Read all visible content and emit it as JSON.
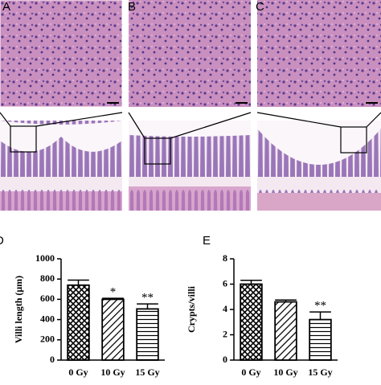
{
  "panel_labels": [
    "A",
    "B",
    "C"
  ],
  "chart_data": [
    {
      "type": "bar",
      "panel": "D",
      "y_label": "Villi length (μm)",
      "categories": [
        "0 Gy",
        "10 Gy",
        "15 Gy"
      ],
      "values": [
        740,
        600,
        505
      ],
      "errors": [
        50,
        10,
        50
      ],
      "significance": [
        null,
        "*",
        "**"
      ],
      "patterns": [
        "crosshatch",
        "diagonal",
        "horizontal"
      ],
      "color": "#000000",
      "ylim": [
        0,
        1000
      ],
      "yticks": [
        0,
        200,
        400,
        600,
        800,
        1000
      ]
    },
    {
      "type": "bar",
      "panel": "E",
      "y_label": "Crypts/villi",
      "categories": [
        "0 Gy",
        "10 Gy",
        "15 Gy"
      ],
      "values": [
        6.0,
        4.6,
        3.2
      ],
      "errors": [
        0.3,
        0.15,
        0.6
      ],
      "significance": [
        null,
        null,
        "**"
      ],
      "patterns": [
        "crosshatch",
        "diagonal",
        "horizontal"
      ],
      "color": "#000000",
      "ylim": [
        0,
        8
      ],
      "yticks": [
        0,
        2,
        4,
        6,
        8
      ]
    }
  ]
}
